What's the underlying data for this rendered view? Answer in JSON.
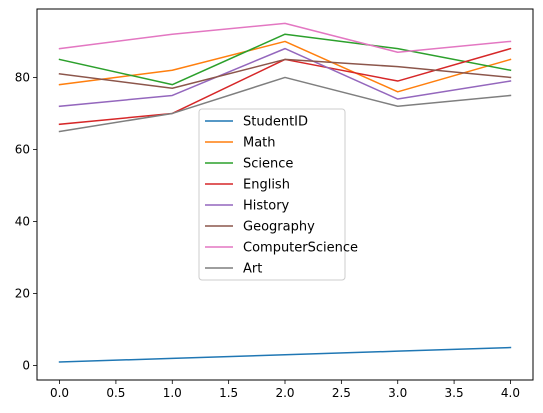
{
  "chart_data": {
    "type": "line",
    "title": "",
    "xlabel": "",
    "ylabel": "",
    "x": [
      0,
      1,
      2,
      3,
      4
    ],
    "xlim": [
      -0.2,
      4.2
    ],
    "ylim": [
      -4,
      99
    ],
    "xticks": [
      0.0,
      0.5,
      1.0,
      1.5,
      2.0,
      2.5,
      3.0,
      3.5,
      4.0
    ],
    "xtick_labels": [
      "0.0",
      "0.5",
      "1.0",
      "1.5",
      "2.0",
      "2.5",
      "3.0",
      "3.5",
      "4.0"
    ],
    "yticks": [
      0,
      20,
      40,
      60,
      80
    ],
    "ytick_labels": [
      "0",
      "20",
      "40",
      "60",
      "80"
    ],
    "grid": false,
    "legend_position": "center",
    "series": [
      {
        "name": "StudentID",
        "color": "#1f77b4",
        "values": [
          1,
          2,
          3,
          4,
          5
        ]
      },
      {
        "name": "Math",
        "color": "#ff7f0e",
        "values": [
          78,
          82,
          90,
          76,
          85
        ]
      },
      {
        "name": "Science",
        "color": "#2ca02c",
        "values": [
          85,
          78,
          92,
          88,
          82
        ]
      },
      {
        "name": "English",
        "color": "#d62728",
        "values": [
          67,
          70,
          85,
          79,
          88
        ]
      },
      {
        "name": "History",
        "color": "#9467bd",
        "values": [
          72,
          75,
          88,
          74,
          79
        ]
      },
      {
        "name": "Geography",
        "color": "#8c564b",
        "values": [
          81,
          77,
          85,
          83,
          80
        ]
      },
      {
        "name": "ComputerScience",
        "color": "#e377c2",
        "values": [
          88,
          92,
          95,
          87,
          90
        ]
      },
      {
        "name": "Art",
        "color": "#7f7f7f",
        "values": [
          65,
          70,
          80,
          72,
          75
        ]
      }
    ]
  }
}
